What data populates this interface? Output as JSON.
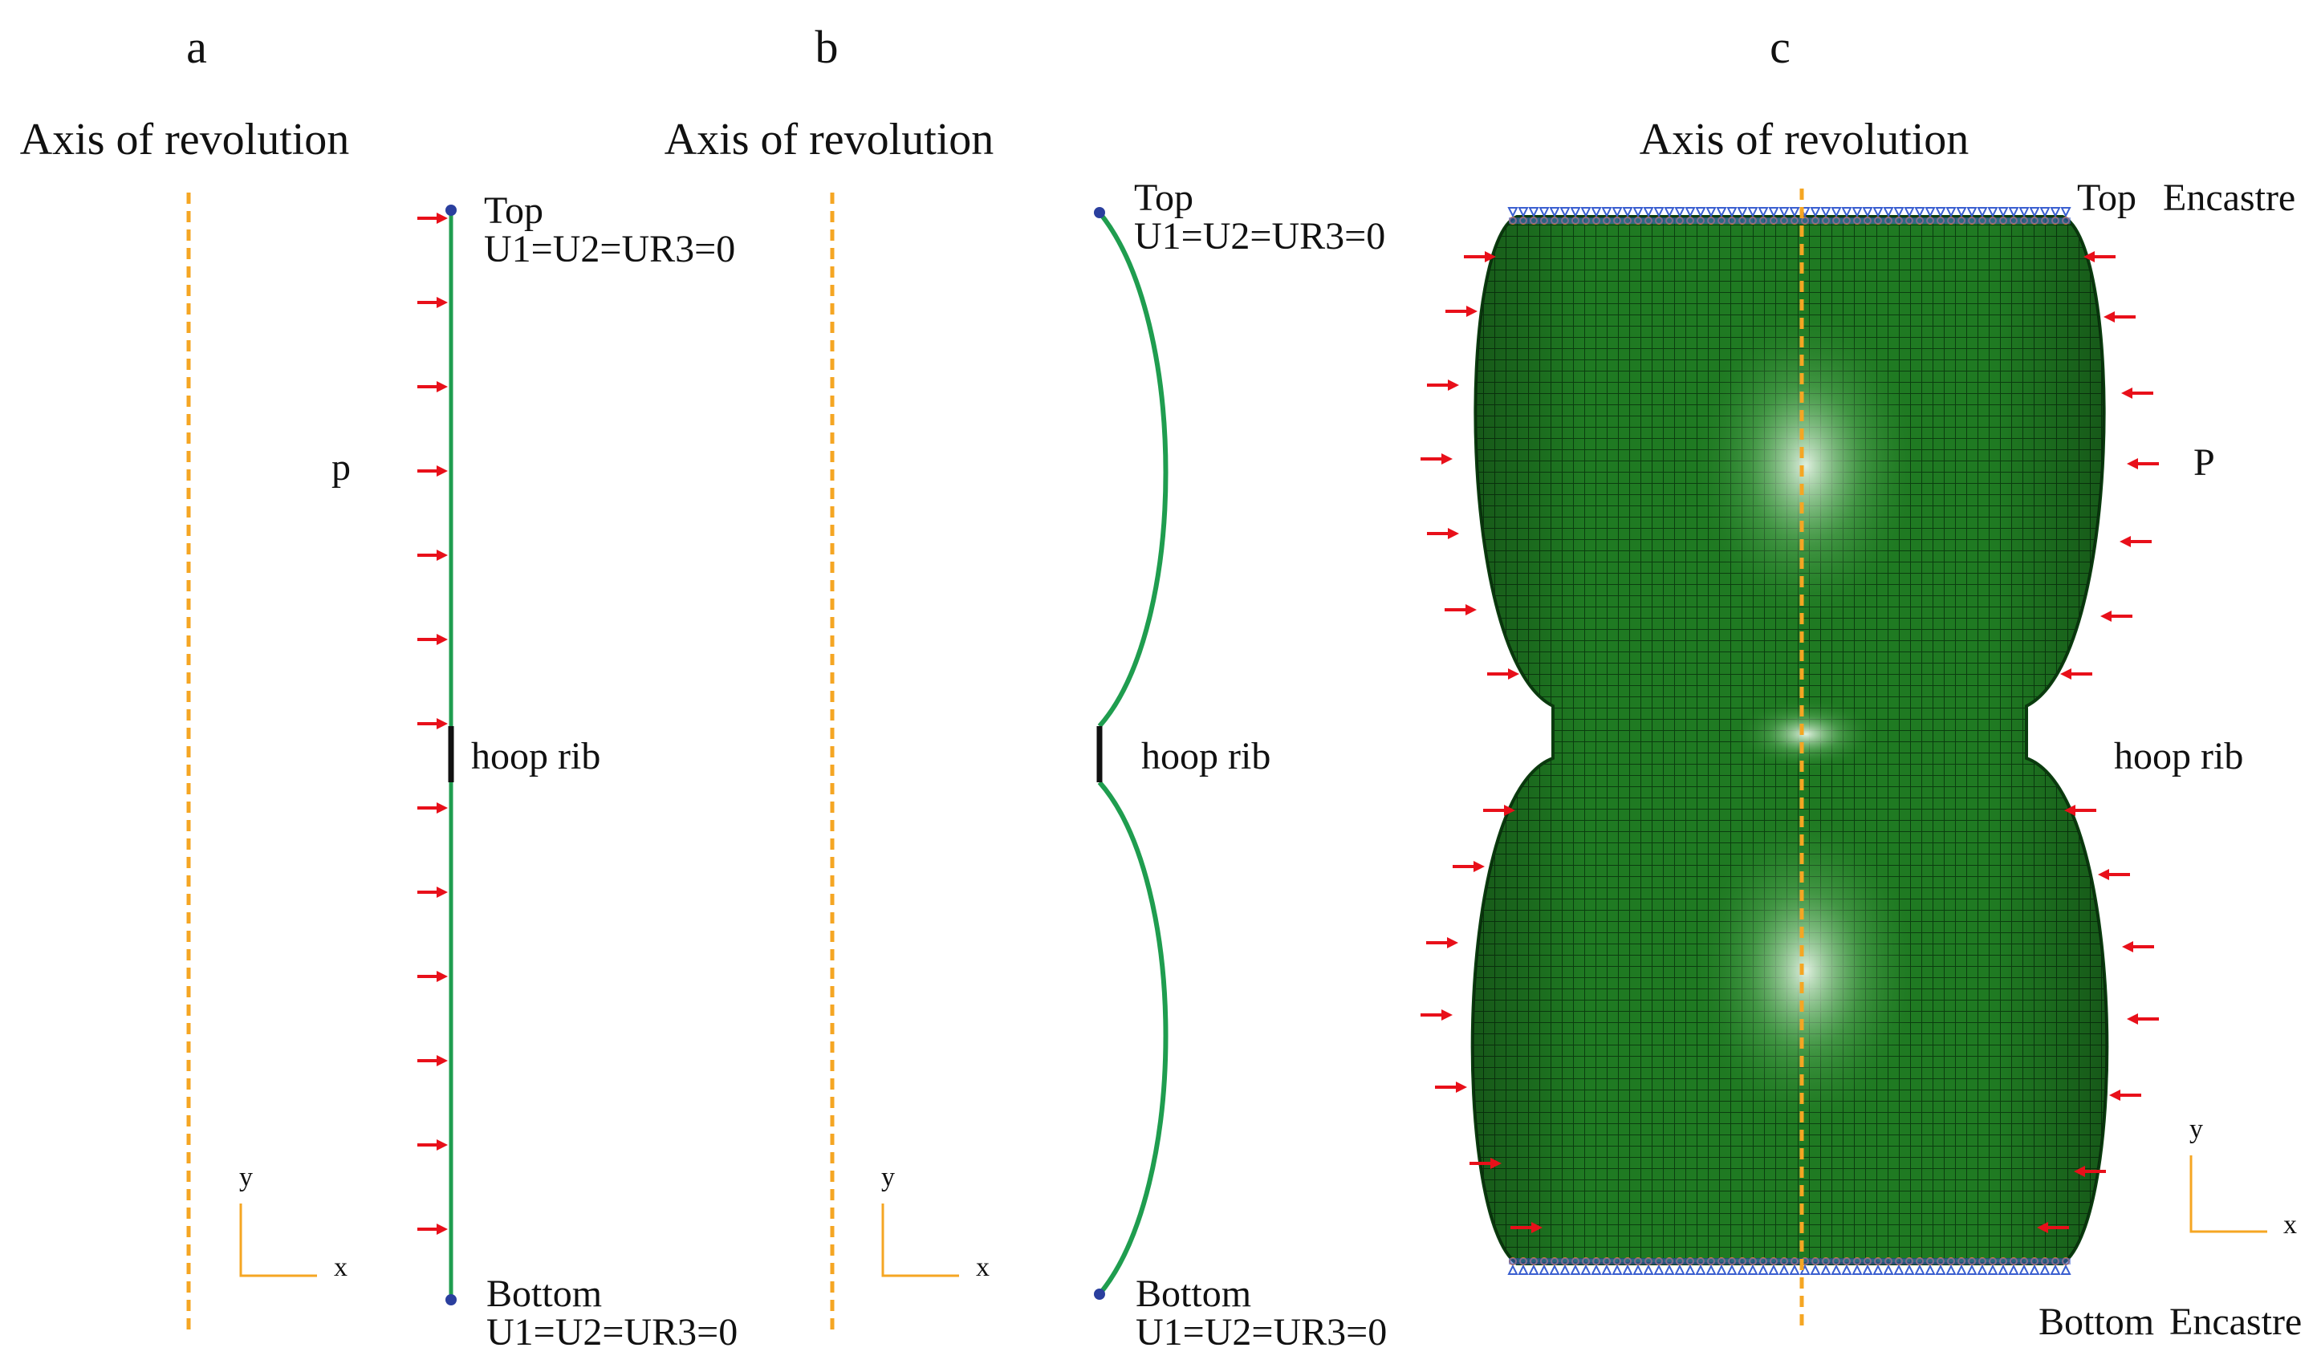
{
  "colors": {
    "axis_dashed": "#f5a623",
    "profile_line": "#1f9d4f",
    "pressure_arrow": "#e8101a",
    "node_marker": "#2a3f9e",
    "rib": "#111111",
    "mesh_fill": "#1f7a22",
    "mesh_line": "#0b3d0f",
    "bc_symbols": "#3a5fd0"
  },
  "panels": {
    "a": {
      "letter": "a",
      "axis_label": "Axis of revolution",
      "top_label": "Top",
      "top_bc": "U1=U2=UR3=0",
      "bottom_label": "Bottom",
      "bottom_bc": "U1=U2=UR3=0",
      "pressure_label": "p",
      "rib_label": "hoop rib",
      "triad": {
        "x": "x",
        "y": "y"
      }
    },
    "b": {
      "letter": "b",
      "axis_label": "Axis of revolution",
      "top_label": "Top",
      "top_bc": "U1=U2=UR3=0",
      "bottom_label": "Bottom",
      "bottom_bc": "U1=U2=UR3=0",
      "rib_label": "hoop rib",
      "triad": {
        "x": "x",
        "y": "y"
      }
    },
    "c": {
      "letter": "c",
      "axis_label": "Axis of revolution",
      "top_label": "Top",
      "top_bc": "Encastre",
      "bottom_label": "Bottom",
      "bottom_bc": "Encastre",
      "pressure_label": "P",
      "rib_label": "hoop rib",
      "triad": {
        "x": "x",
        "y": "y"
      }
    }
  }
}
